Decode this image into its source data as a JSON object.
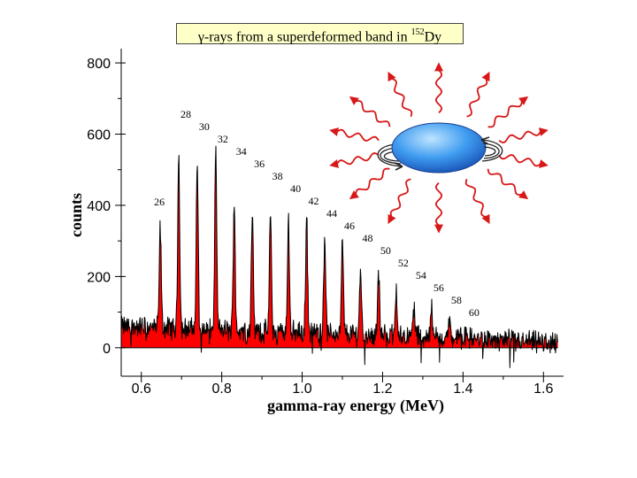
{
  "title": {
    "prefix": "γ-rays from a superdeformed band in ",
    "mass_number": "152",
    "element": "Dy"
  },
  "colors": {
    "fill": "#ff0000",
    "trace": "#000000",
    "nucleus": "#3f9cf0",
    "arrows": "#d81818",
    "title_bg": "#ffffc8"
  },
  "chart_data": {
    "type": "line",
    "title": "γ-rays from a superdeformed band in 152Dy",
    "xlabel": "gamma-ray energy (MeV)",
    "ylabel": "counts",
    "xlim": [
      0.55,
      1.65
    ],
    "ylim": [
      -80,
      840
    ],
    "xticks": [
      0.6,
      0.8,
      1.0,
      1.2,
      1.4,
      1.6
    ],
    "xtick_labels": [
      "0.6",
      "0.8",
      "1.0",
      "1.2",
      "1.4",
      "1.6"
    ],
    "yticks": [
      0,
      200,
      400,
      600,
      800
    ],
    "ytick_labels": [
      "0",
      "200",
      "400",
      "600",
      "800"
    ],
    "background_level": [
      {
        "x": 0.55,
        "y": 60
      },
      {
        "x": 0.75,
        "y": 52
      },
      {
        "x": 1.0,
        "y": 43
      },
      {
        "x": 1.3,
        "y": 32
      },
      {
        "x": 1.6,
        "y": 14
      }
    ],
    "peaks": [
      {
        "label": "26",
        "energy": 0.647,
        "counts": 340
      },
      {
        "label": "28",
        "energy": 0.693,
        "counts": 550
      },
      {
        "label": "30",
        "energy": 0.739,
        "counts": 520
      },
      {
        "label": "32",
        "energy": 0.785,
        "counts": 560
      },
      {
        "label": "34",
        "energy": 0.831,
        "counts": 420
      },
      {
        "label": "36",
        "energy": 0.876,
        "counts": 380
      },
      {
        "label": "38",
        "energy": 0.921,
        "counts": 375
      },
      {
        "label": "40",
        "energy": 0.966,
        "counts": 375
      },
      {
        "label": "42",
        "energy": 1.011,
        "counts": 370
      },
      {
        "label": "44",
        "energy": 1.056,
        "counts": 320
      },
      {
        "label": "46",
        "energy": 1.1,
        "counts": 295
      },
      {
        "label": "48",
        "energy": 1.145,
        "counts": 225
      },
      {
        "label": "50",
        "energy": 1.19,
        "counts": 210
      },
      {
        "label": "52",
        "energy": 1.234,
        "counts": 165
      },
      {
        "label": "54",
        "energy": 1.278,
        "counts": 118
      },
      {
        "label": "56",
        "energy": 1.322,
        "counts": 108
      },
      {
        "label": "58",
        "energy": 1.366,
        "counts": 70
      },
      {
        "label": "60",
        "energy": 1.41,
        "counts": 50
      }
    ]
  }
}
